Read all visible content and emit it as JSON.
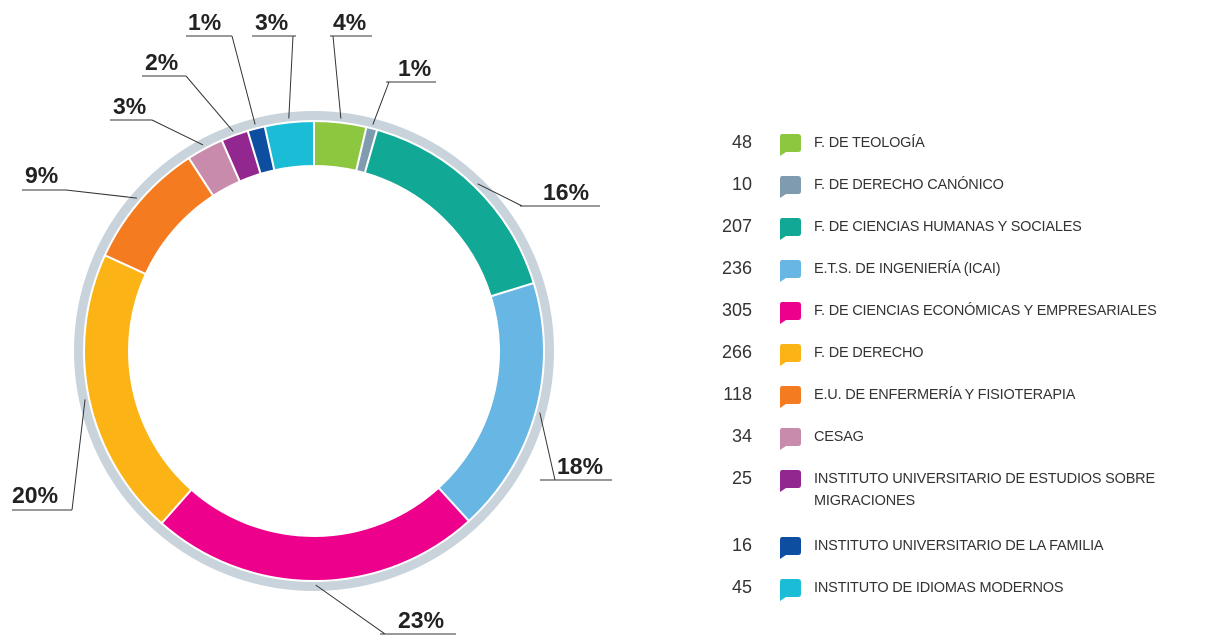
{
  "chart_data": {
    "type": "donut",
    "categories": [
      "F. DE TEOLOGÍA",
      "F. DE DERECHO CANÓNICO",
      "F. DE CIENCIAS HUMANAS Y SOCIALES",
      "E.T.S. DE INGENIERÍA (ICAI)",
      "F. DE CIENCIAS ECONÓMICAS Y EMPRESARIALES",
      "F. DE DERECHO",
      "E.U. DE ENFERMERÍA Y FISIOTERAPIA",
      "CESAG",
      "INSTITUTO UNIVERSITARIO DE ESTUDIOS SOBRE MIGRACIONES",
      "INSTITUTO UNIVERSITARIO DE LA FAMILIA",
      "INSTITUTO DE IDIOMAS MODERNOS"
    ],
    "values": [
      48,
      10,
      207,
      236,
      305,
      266,
      118,
      34,
      25,
      16,
      45
    ],
    "value_labels": [
      "4%",
      "1%",
      "16%",
      "18%",
      "23%",
      "20%",
      "9%",
      "3%",
      "2%",
      "1%",
      "3%"
    ],
    "colors": [
      "#8dc63f",
      "#7f9bb0",
      "#12a896",
      "#68b6e3",
      "#ec008c",
      "#fbb316",
      "#f47b20",
      "#c98bab",
      "#92278f",
      "#0d4ea1",
      "#1bbdd6"
    ]
  }
}
